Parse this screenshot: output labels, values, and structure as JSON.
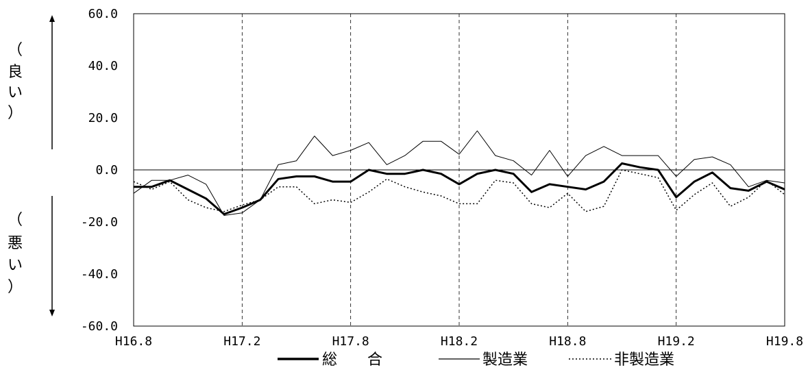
{
  "chart_data": {
    "type": "line",
    "x": [
      "H16.8",
      "H16.9",
      "H16.10",
      "H16.11",
      "H16.12",
      "H17.1",
      "H17.2",
      "H17.3",
      "H17.4",
      "H17.5",
      "H17.6",
      "H17.7",
      "H17.8",
      "H17.9",
      "H17.10",
      "H17.11",
      "H17.12",
      "H18.1",
      "H18.2",
      "H18.3",
      "H18.4",
      "H18.5",
      "H18.6",
      "H18.7",
      "H18.8",
      "H18.9",
      "H18.10",
      "H18.11",
      "H18.12",
      "H19.1",
      "H19.2",
      "H19.3",
      "H19.4",
      "H19.5",
      "H19.6",
      "H19.7",
      "H19.8"
    ],
    "x_tick_labels": [
      "H16.8",
      "H17.2",
      "H17.8",
      "H18.2",
      "H18.8",
      "H19.2",
      "H19.8"
    ],
    "y_tick_labels": [
      "60.0",
      "40.0",
      "20.0",
      "0.0",
      "-20.0",
      "-40.0",
      "-60.0"
    ],
    "ylim": [
      -60,
      60
    ],
    "series": [
      {
        "name": "総　　合",
        "style": "bold",
        "values": [
          -6.5,
          -6.5,
          -4,
          -7.5,
          -11,
          -17,
          -14.5,
          -11.5,
          -3.5,
          -2.5,
          -2.5,
          -4.5,
          -4.5,
          0,
          -1.5,
          -1.5,
          0,
          -1.5,
          -5.5,
          -1.5,
          0,
          -1.5,
          -8.5,
          -5.5,
          -6.5,
          -7.5,
          -4.5,
          2.5,
          1,
          0,
          -10.5,
          -4.5,
          -1,
          -7,
          -8,
          -4.5,
          -7.5
        ]
      },
      {
        "name": "製造業",
        "style": "thin",
        "values": [
          -9,
          -4,
          -4,
          -2,
          -5.5,
          -17.5,
          -16.5,
          -11.5,
          2,
          3.5,
          13,
          5.5,
          7.5,
          10.5,
          2,
          5.5,
          11,
          11,
          6,
          15,
          5.5,
          3.5,
          -2,
          7.5,
          -2.5,
          5.5,
          9,
          5.5,
          5.5,
          5.5,
          -2.5,
          4,
          5,
          2,
          -6.5,
          -4,
          -5
        ]
      },
      {
        "name": "非製造業",
        "style": "dotted",
        "values": [
          -4.5,
          -7.5,
          -4.5,
          -11.5,
          -14.5,
          -16,
          -13.5,
          -11.5,
          -6.5,
          -6.5,
          -13,
          -11.5,
          -12.5,
          -8.5,
          -3.5,
          -6.5,
          -8.5,
          -10,
          -13,
          -13,
          -4,
          -5,
          -13,
          -14.5,
          -9,
          -16,
          -14,
          0,
          -1.5,
          -3,
          -15.5,
          -9.5,
          -5,
          -14,
          -10.5,
          -4,
          -9.5
        ]
      }
    ],
    "left_label_top": [
      "（",
      "良",
      "い",
      "）"
    ],
    "left_label_bottom": [
      "（",
      "悪",
      "い",
      "）"
    ],
    "grid": "dashed vertical lines at semiannual ticks, solid zero line"
  }
}
